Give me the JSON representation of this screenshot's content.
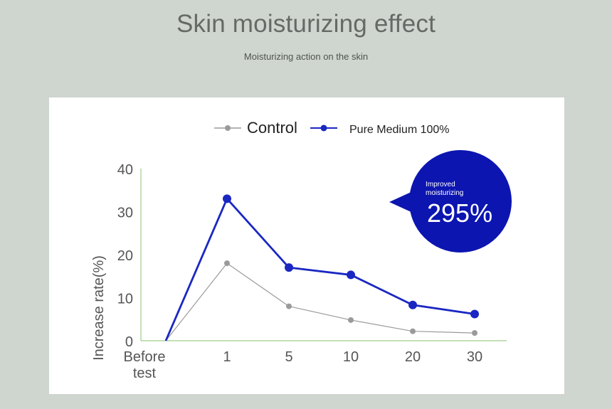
{
  "header": {
    "title": "Skin moisturizing effect",
    "subtitle": "Moisturizing action on the skin"
  },
  "callout": {
    "label_line1": "Improved",
    "label_line2": "moisturizing",
    "value": "295%"
  },
  "colors": {
    "background": "#cfd5cf",
    "card": "#ffffff",
    "control": "#9a9a9a",
    "pure_medium": "#1a27c2",
    "callout": "#0c15b0",
    "axis": "#88c070"
  },
  "chart_data": {
    "type": "line",
    "categories": [
      "Before\ntest",
      "1",
      "5",
      "10",
      "20",
      "30"
    ],
    "series": [
      {
        "name": "Control",
        "values": [
          0,
          18,
          8,
          4.8,
          2.2,
          1.8
        ]
      },
      {
        "name": "Pure Medium 100%",
        "values": [
          0,
          33,
          17,
          15.3,
          8.3,
          6.2
        ]
      }
    ],
    "ylabel": "Increase rate(%)",
    "ylim": [
      0,
      40
    ],
    "yticks": [
      0,
      10,
      20,
      30,
      40
    ],
    "legend": "top-center",
    "grid": false
  }
}
